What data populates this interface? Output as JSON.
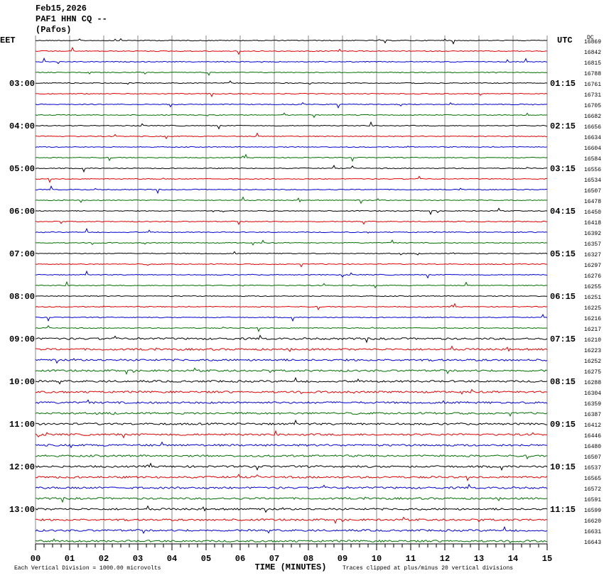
{
  "chart_data": {
    "type": "helicorder",
    "header": [
      "Feb15,2026",
      "PAF1 HHN CQ --",
      "(Pafos)"
    ],
    "left_zone": "EET",
    "right_zone": "UTC",
    "dc_label": "DC",
    "trace_colors": [
      "#000000",
      "#e00000",
      "#0000d0",
      "#007000"
    ],
    "dc_values": [
      16869,
      16842,
      16815,
      16788,
      16761,
      16731,
      16705,
      16682,
      16656,
      16634,
      16604,
      16584,
      16556,
      16534,
      16507,
      16478,
      16450,
      16418,
      16392,
      16357,
      16327,
      16297,
      16276,
      16255,
      16251,
      16225,
      16216,
      16217,
      16210,
      16223,
      16252,
      16275,
      16288,
      16304,
      16359,
      16387,
      16412,
      16446,
      16480,
      16507,
      16537,
      16565,
      16572,
      16591,
      16599,
      16620,
      16631,
      16643
    ],
    "hour_labels": [
      {
        "eet": "03:00",
        "utc": "01:15"
      },
      {
        "eet": "04:00",
        "utc": "02:15"
      },
      {
        "eet": "05:00",
        "utc": "03:15"
      },
      {
        "eet": "06:00",
        "utc": "04:15"
      },
      {
        "eet": "07:00",
        "utc": "05:15"
      },
      {
        "eet": "08:00",
        "utc": "06:15"
      },
      {
        "eet": "09:00",
        "utc": "07:15"
      },
      {
        "eet": "10:00",
        "utc": "08:15"
      },
      {
        "eet": "11:00",
        "utc": "09:15"
      },
      {
        "eet": "12:00",
        "utc": "10:15"
      },
      {
        "eet": "13:00",
        "utc": "11:15"
      }
    ],
    "xlim": [
      0,
      15
    ],
    "xticks": [
      {
        "value": 0,
        "label": "00"
      },
      {
        "value": 1,
        "label": "01"
      },
      {
        "value": 2,
        "label": "02"
      },
      {
        "value": 3,
        "label": "03"
      },
      {
        "value": 4,
        "label": "04"
      },
      {
        "value": 5,
        "label": "05"
      },
      {
        "value": 6,
        "label": "06"
      },
      {
        "value": 7,
        "label": "07"
      },
      {
        "value": 8,
        "label": "08"
      },
      {
        "value": 9,
        "label": "09"
      },
      10,
      11,
      12,
      13,
      14,
      15
    ],
    "xlabel": "TIME (MINUTES)",
    "scale_note": "Each Vertical Division = 1000.00 microvolts",
    "clip_note": "Traces clipped at plus/minus 20 vertical divisions"
  }
}
